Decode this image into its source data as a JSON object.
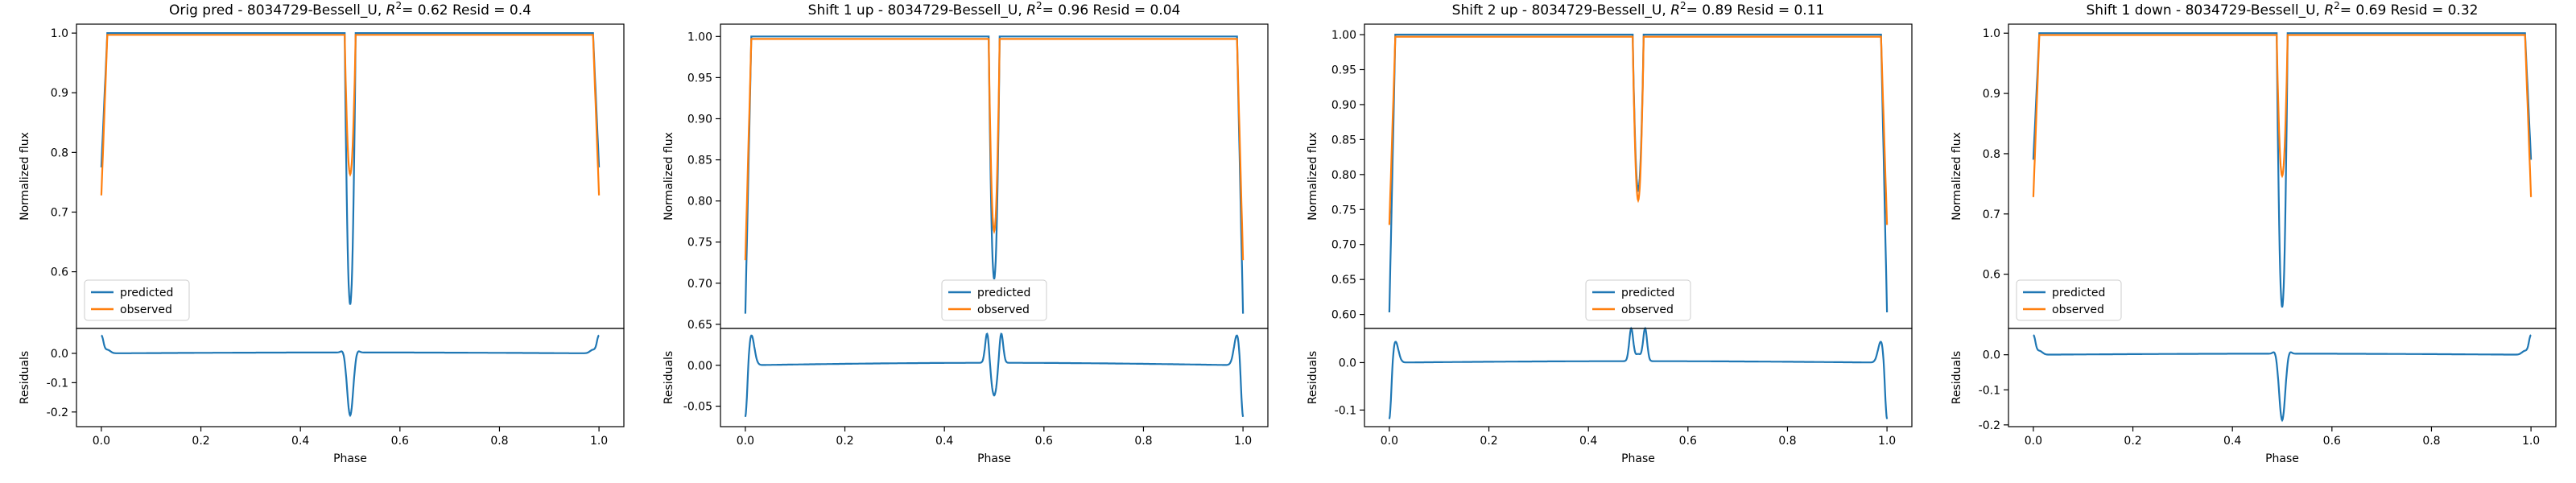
{
  "figure": {
    "xlabel": "Phase",
    "ylabel_top": "Normalized flux",
    "ylabel_bottom": "Residuals",
    "legend": [
      "predicted",
      "observed"
    ],
    "colors": {
      "predicted": "#1f77b4",
      "observed": "#ff7f0e"
    }
  },
  "chart_data": [
    {
      "type": "line",
      "title": "Orig pred - 8034729-Bessell_U, R² = 0.62 Resid = 0.4",
      "title_parts": {
        "pre": "Orig pred - 8034729-Bessell_U, ",
        "r2": "= 0.62 Resid = 0.4"
      },
      "xlim": [
        -0.05,
        1.05
      ],
      "xticks": [
        "0.0",
        "0.2",
        "0.4",
        "0.6",
        "0.8",
        "1.0"
      ],
      "top": {
        "ylim": [
          0.505,
          1.015
        ],
        "yticks": [
          "0.6",
          "0.7",
          "0.8",
          "0.9",
          "1.0"
        ],
        "legend_position": "lower-left",
        "predicted": {
          "edge_value": 0.775,
          "eclipse_depth": 0.545,
          "plateau": 1.0
        },
        "observed": {
          "edge_value": 0.728,
          "eclipse_depth": 0.763,
          "plateau": 0.997
        }
      },
      "bottom": {
        "ylim": [
          -0.25,
          0.085
        ],
        "yticks": [
          "0.0",
          "-0.1",
          "-0.2"
        ],
        "residual": {
          "edge_value": 0.06,
          "spike_max": 0.06,
          "dip_min": -0.215,
          "dip_side": 0.01
        }
      }
    },
    {
      "type": "line",
      "title": "Shift 1 up - 8034729-Bessell_U, R² = 0.96 Resid = 0.04",
      "title_parts": {
        "pre": "Shift 1 up - 8034729-Bessell_U, ",
        "r2": "= 0.96 Resid = 0.04"
      },
      "xlim": [
        -0.05,
        1.05
      ],
      "xticks": [
        "0.0",
        "0.2",
        "0.4",
        "0.6",
        "0.8",
        "1.0"
      ],
      "top": {
        "ylim": [
          0.645,
          1.015
        ],
        "yticks": [
          "0.65",
          "0.70",
          "0.75",
          "0.80",
          "0.85",
          "0.90",
          "0.95",
          "1.00"
        ],
        "legend_position": "lower-center",
        "predicted": {
          "edge_value": 0.663,
          "eclipse_depth": 0.705,
          "plateau": 1.0
        },
        "observed": {
          "edge_value": 0.728,
          "eclipse_depth": 0.763,
          "plateau": 0.997
        }
      },
      "bottom": {
        "ylim": [
          -0.075,
          0.045
        ],
        "yticks": [
          "0.00",
          "-0.05"
        ],
        "residual": {
          "edge_value": -0.068,
          "spike_max": 0.037,
          "dip_min": -0.04,
          "dip_side": 0.038
        }
      }
    },
    {
      "type": "line",
      "title": "Shift 2 up - 8034729-Bessell_U, R² = 0.89 Resid = 0.11",
      "title_parts": {
        "pre": "Shift 2 up - 8034729-Bessell_U, ",
        "r2": "= 0.89 Resid = 0.11"
      },
      "xlim": [
        -0.05,
        1.05
      ],
      "xticks": [
        "0.0",
        "0.2",
        "0.4",
        "0.6",
        "0.8",
        "1.0"
      ],
      "top": {
        "ylim": [
          0.58,
          1.015
        ],
        "yticks": [
          "0.60",
          "0.65",
          "0.70",
          "0.75",
          "0.80",
          "0.85",
          "0.90",
          "0.95",
          "1.00"
        ],
        "legend_position": "lower-center",
        "predicted": {
          "edge_value": 0.603,
          "eclipse_depth": 0.778,
          "plateau": 1.0
        },
        "observed": {
          "edge_value": 0.728,
          "eclipse_depth": 0.763,
          "plateau": 0.997
        }
      },
      "bottom": {
        "ylim": [
          -0.135,
          0.072
        ],
        "yticks": [
          "0.0",
          "-0.1"
        ],
        "residual": {
          "edge_value": -0.125,
          "spike_max": 0.045,
          "dip_min": 0.015,
          "dip_side": 0.068
        }
      }
    },
    {
      "type": "line",
      "title": "Shift 1 down - 8034729-Bessell_U, R² = 0.69 Resid = 0.32",
      "title_parts": {
        "pre": "Shift 1 down - 8034729-Bessell_U, ",
        "r2": "= 0.69 Resid = 0.32"
      },
      "xlim": [
        -0.05,
        1.05
      ],
      "xticks": [
        "0.0",
        "0.2",
        "0.4",
        "0.6",
        "0.8",
        "1.0"
      ],
      "top": {
        "ylim": [
          0.51,
          1.015
        ],
        "yticks": [
          "0.6",
          "0.7",
          "0.8",
          "0.9",
          "1.0"
        ],
        "legend_position": "lower-left",
        "predicted": {
          "edge_value": 0.79,
          "eclipse_depth": 0.545,
          "plateau": 1.0
        },
        "observed": {
          "edge_value": 0.728,
          "eclipse_depth": 0.763,
          "plateau": 0.997
        }
      },
      "bottom": {
        "ylim": [
          -0.205,
          0.075
        ],
        "yticks": [
          "0.0",
          "-0.1",
          "-0.2"
        ],
        "residual": {
          "edge_value": 0.055,
          "spike_max": 0.055,
          "dip_min": -0.19,
          "dip_side": 0.01
        }
      }
    }
  ]
}
